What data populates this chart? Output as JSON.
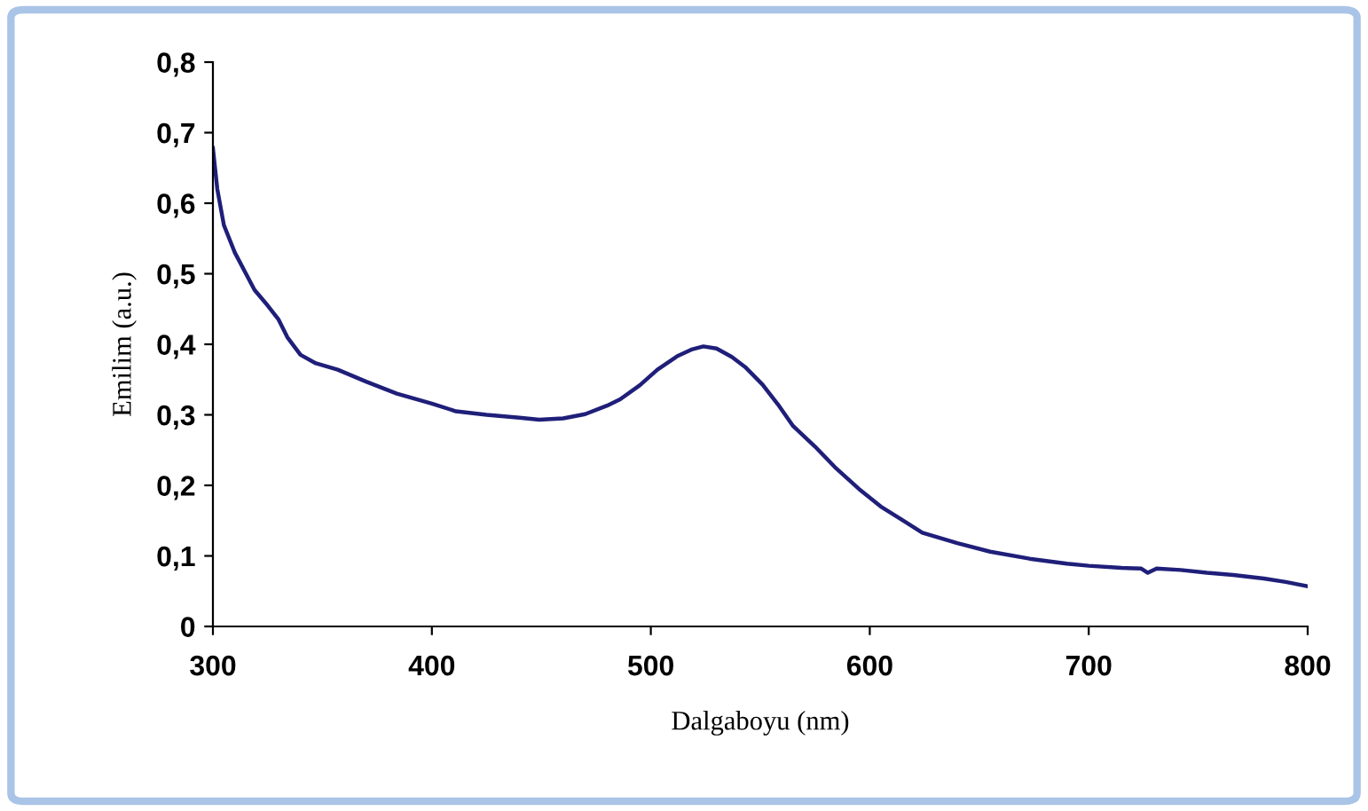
{
  "chart_data": {
    "type": "line",
    "xlabel": "Dalgaboyu (nm)",
    "ylabel": "Emilim (a.u.)",
    "x": [
      300,
      302,
      305,
      310,
      319,
      325,
      330,
      334,
      340,
      347,
      357,
      370,
      384,
      400,
      411,
      425,
      440,
      449,
      460,
      470,
      480,
      486,
      495,
      503,
      512,
      519,
      524,
      530,
      537,
      543,
      551,
      558,
      565,
      575,
      584,
      595,
      605,
      624,
      640,
      655,
      673,
      690,
      700,
      715,
      724,
      727,
      731,
      742,
      754,
      766,
      780,
      790,
      800
    ],
    "series": [
      {
        "color": "#1f1f7a",
        "values": [
          0.678,
          0.62,
          0.569,
          0.53,
          0.477,
          0.455,
          0.435,
          0.41,
          0.385,
          0.373,
          0.364,
          0.347,
          0.33,
          0.316,
          0.305,
          0.3,
          0.296,
          0.293,
          0.295,
          0.301,
          0.313,
          0.322,
          0.342,
          0.364,
          0.383,
          0.393,
          0.397,
          0.394,
          0.382,
          0.368,
          0.343,
          0.315,
          0.284,
          0.255,
          0.226,
          0.195,
          0.17,
          0.133,
          0.118,
          0.106,
          0.096,
          0.089,
          0.086,
          0.083,
          0.082,
          0.076,
          0.082,
          0.08,
          0.076,
          0.073,
          0.068,
          0.063,
          0.057
        ]
      }
    ],
    "xlim": [
      300,
      800
    ],
    "ylim": [
      0,
      0.8
    ],
    "xticks": [
      300,
      400,
      500,
      600,
      700,
      800
    ],
    "yticks": [
      0,
      {
        "value": 0.1,
        "label": "0,1"
      },
      {
        "value": 0.2,
        "label": "0,2"
      },
      {
        "value": 0.3,
        "label": "0,3"
      },
      {
        "value": 0.4,
        "label": "0,4"
      },
      {
        "value": 0.5,
        "label": "0,5"
      },
      {
        "value": 0.6,
        "label": "0,6"
      },
      {
        "value": 0.7,
        "label": "0,7"
      },
      {
        "value": 0.8,
        "label": "0,8"
      }
    ],
    "grid": false,
    "legend": false,
    "marker": "none",
    "line_style": "solid"
  }
}
